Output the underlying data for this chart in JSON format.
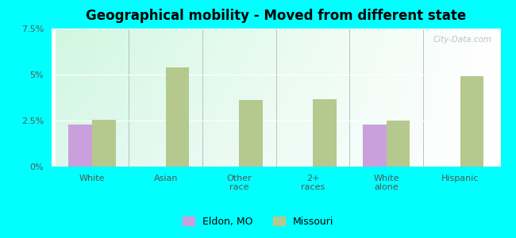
{
  "title": "Geographical mobility - Moved from different state",
  "categories": [
    "White",
    "Asian",
    "Other\nrace",
    "2+\nraces",
    "White\nalone",
    "Hispanic"
  ],
  "eldon_values": [
    2.3,
    0,
    0,
    0,
    2.3,
    0
  ],
  "missouri_values": [
    2.55,
    5.4,
    3.6,
    3.65,
    2.5,
    4.9
  ],
  "eldon_color": "#c9a0dc",
  "missouri_color": "#b5c98e",
  "background_color": "#00ffff",
  "ylim": [
    0,
    7.5
  ],
  "yticks": [
    0,
    2.5,
    5.0,
    7.5
  ],
  "ytick_labels": [
    "0%",
    "2.5%",
    "5%",
    "7.5%"
  ],
  "bar_width": 0.32,
  "legend_labels": [
    "Eldon, MO",
    "Missouri"
  ],
  "watermark": "City-Data.com",
  "title_fontsize": 12,
  "tick_fontsize": 8
}
